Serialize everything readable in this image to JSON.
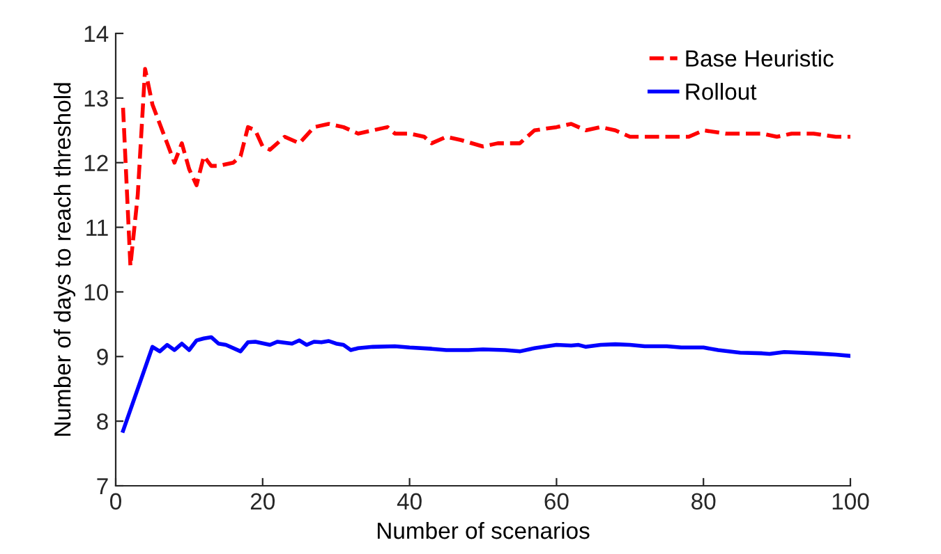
{
  "chart_data": {
    "type": "line",
    "xlabel": "Number of scenarios",
    "ylabel": "Number of days to reach threshold",
    "xlim": [
      0,
      100
    ],
    "xticks": [
      0,
      20,
      40,
      60,
      80,
      100
    ],
    "ylim": [
      7,
      14
    ],
    "yticks": [
      7,
      8,
      9,
      10,
      11,
      12,
      13,
      14
    ],
    "grid": false,
    "legend": "top right",
    "marker": "none",
    "series": [
      {
        "name": "Base Heuristic",
        "color": "#ff0000",
        "line_style": "dashed",
        "x": [
          1,
          2,
          3,
          4,
          5,
          6,
          7,
          8,
          9,
          10,
          11,
          12,
          13,
          14,
          16,
          17,
          18,
          19,
          20,
          21,
          23,
          25,
          27,
          29,
          31,
          33,
          35,
          37,
          38,
          40,
          42,
          43,
          45,
          47,
          50,
          52,
          55,
          57,
          60,
          62,
          64,
          66,
          68,
          70,
          72,
          75,
          78,
          80,
          83,
          86,
          88,
          90,
          92,
          95,
          98,
          100
        ],
        "values": [
          12.85,
          10.4,
          11.5,
          13.45,
          12.9,
          12.6,
          12.3,
          12.0,
          12.3,
          11.9,
          11.65,
          12.1,
          11.95,
          11.95,
          12.0,
          12.1,
          12.55,
          12.5,
          12.25,
          12.2,
          12.4,
          12.3,
          12.55,
          12.6,
          12.55,
          12.45,
          12.5,
          12.55,
          12.45,
          12.45,
          12.4,
          12.3,
          12.4,
          12.35,
          12.25,
          12.3,
          12.3,
          12.5,
          12.55,
          12.6,
          12.5,
          12.55,
          12.5,
          12.4,
          12.4,
          12.4,
          12.4,
          12.5,
          12.45,
          12.45,
          12.45,
          12.4,
          12.45,
          12.45,
          12.4,
          12.4
        ]
      },
      {
        "name": "Rollout",
        "color": "#0000ff",
        "line_style": "solid",
        "x": [
          1,
          5,
          6,
          7,
          8,
          9,
          10,
          11,
          12,
          13,
          14,
          15,
          17,
          18,
          19,
          21,
          22,
          24,
          25,
          26,
          27,
          28,
          29,
          30,
          31,
          32,
          33,
          35,
          38,
          40,
          43,
          45,
          48,
          50,
          53,
          55,
          57,
          60,
          62,
          63,
          64,
          66,
          68,
          70,
          72,
          75,
          77,
          80,
          82,
          85,
          88,
          89,
          91,
          95,
          98,
          100
        ],
        "values": [
          7.85,
          9.15,
          9.08,
          9.18,
          9.1,
          9.2,
          9.1,
          9.25,
          9.28,
          9.3,
          9.2,
          9.18,
          9.08,
          9.22,
          9.23,
          9.18,
          9.23,
          9.2,
          9.25,
          9.18,
          9.23,
          9.22,
          9.24,
          9.2,
          9.18,
          9.1,
          9.13,
          9.15,
          9.16,
          9.14,
          9.12,
          9.1,
          9.1,
          9.11,
          9.1,
          9.08,
          9.13,
          9.18,
          9.17,
          9.18,
          9.15,
          9.18,
          9.19,
          9.18,
          9.16,
          9.16,
          9.14,
          9.14,
          9.1,
          9.06,
          9.05,
          9.04,
          9.07,
          9.05,
          9.03,
          9.01
        ]
      }
    ]
  }
}
